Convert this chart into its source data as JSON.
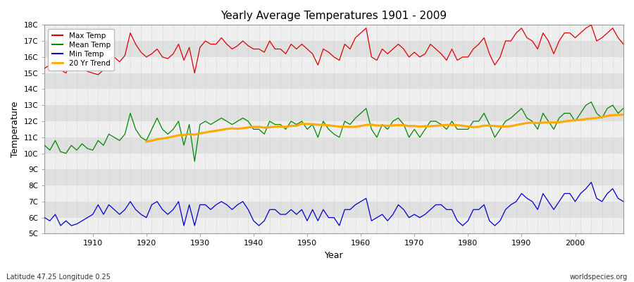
{
  "title": "Yearly Average Temperatures 1901 - 2009",
  "xlabel": "Year",
  "ylabel": "Temperature",
  "footnote_left": "Latitude 47.25 Longitude 0.25",
  "footnote_right": "worldspecies.org",
  "years": [
    1901,
    1902,
    1903,
    1904,
    1905,
    1906,
    1907,
    1908,
    1909,
    1910,
    1911,
    1912,
    1913,
    1914,
    1915,
    1916,
    1917,
    1918,
    1919,
    1920,
    1921,
    1922,
    1923,
    1924,
    1925,
    1926,
    1927,
    1928,
    1929,
    1930,
    1931,
    1932,
    1933,
    1934,
    1935,
    1936,
    1937,
    1938,
    1939,
    1940,
    1941,
    1942,
    1943,
    1944,
    1945,
    1946,
    1947,
    1948,
    1949,
    1950,
    1951,
    1952,
    1953,
    1954,
    1955,
    1956,
    1957,
    1958,
    1959,
    1960,
    1961,
    1962,
    1963,
    1964,
    1965,
    1966,
    1967,
    1968,
    1969,
    1970,
    1971,
    1972,
    1973,
    1974,
    1975,
    1976,
    1977,
    1978,
    1979,
    1980,
    1981,
    1982,
    1983,
    1984,
    1985,
    1986,
    1987,
    1988,
    1989,
    1990,
    1991,
    1992,
    1993,
    1994,
    1995,
    1996,
    1997,
    1998,
    1999,
    2000,
    2001,
    2002,
    2003,
    2004,
    2005,
    2006,
    2007,
    2008,
    2009
  ],
  "max_temp": [
    15.3,
    15.5,
    15.8,
    15.2,
    15.0,
    15.8,
    15.3,
    15.6,
    15.1,
    15.0,
    14.9,
    15.2,
    15.8,
    16.0,
    15.7,
    16.1,
    17.5,
    16.8,
    16.3,
    16.0,
    16.2,
    16.5,
    16.0,
    15.9,
    16.2,
    16.8,
    15.8,
    16.6,
    15.0,
    16.6,
    17.0,
    16.8,
    16.8,
    17.2,
    16.8,
    16.5,
    16.7,
    17.0,
    16.7,
    16.5,
    16.5,
    16.3,
    17.0,
    16.5,
    16.5,
    16.2,
    16.8,
    16.5,
    16.8,
    16.5,
    16.2,
    15.5,
    16.5,
    16.3,
    16.0,
    15.8,
    16.8,
    16.5,
    17.2,
    17.5,
    17.8,
    16.0,
    15.8,
    16.5,
    16.2,
    16.5,
    16.8,
    16.5,
    16.0,
    16.3,
    16.0,
    16.2,
    16.8,
    16.5,
    16.2,
    15.8,
    16.5,
    15.8,
    16.0,
    16.0,
    16.5,
    16.8,
    17.2,
    16.2,
    15.5,
    16.0,
    17.0,
    17.0,
    17.5,
    17.8,
    17.2,
    17.0,
    16.5,
    17.5,
    17.0,
    16.2,
    17.0,
    17.5,
    17.5,
    17.2,
    17.5,
    17.8,
    18.0,
    17.0,
    17.2,
    17.5,
    17.8,
    17.2,
    16.8
  ],
  "mean_temp": [
    10.5,
    10.2,
    10.8,
    10.1,
    10.0,
    10.5,
    10.2,
    10.6,
    10.3,
    10.2,
    10.8,
    10.5,
    11.2,
    11.0,
    10.8,
    11.2,
    12.5,
    11.5,
    11.0,
    10.8,
    11.5,
    12.2,
    11.5,
    11.2,
    11.5,
    12.0,
    10.5,
    11.8,
    9.5,
    11.8,
    12.0,
    11.8,
    12.0,
    12.2,
    12.0,
    11.8,
    12.0,
    12.2,
    12.0,
    11.5,
    11.5,
    11.2,
    12.0,
    11.8,
    11.8,
    11.5,
    12.0,
    11.8,
    12.0,
    11.5,
    11.8,
    11.0,
    12.0,
    11.5,
    11.2,
    11.0,
    12.0,
    11.8,
    12.2,
    12.5,
    12.8,
    11.5,
    11.0,
    11.8,
    11.5,
    12.0,
    12.2,
    11.8,
    11.0,
    11.5,
    11.0,
    11.5,
    12.0,
    12.0,
    11.8,
    11.5,
    12.0,
    11.5,
    11.5,
    11.5,
    12.0,
    12.0,
    12.5,
    11.8,
    11.0,
    11.5,
    12.0,
    12.2,
    12.5,
    12.8,
    12.2,
    12.0,
    11.5,
    12.5,
    12.0,
    11.5,
    12.2,
    12.5,
    12.5,
    12.0,
    12.5,
    13.0,
    13.2,
    12.5,
    12.2,
    12.8,
    13.0,
    12.5,
    12.8
  ],
  "min_temp": [
    6.0,
    5.8,
    6.2,
    5.5,
    5.8,
    5.5,
    5.6,
    5.8,
    6.0,
    6.2,
    6.8,
    6.2,
    6.8,
    6.5,
    6.2,
    6.5,
    7.0,
    6.5,
    6.2,
    6.0,
    6.8,
    7.0,
    6.5,
    6.2,
    6.5,
    7.0,
    5.5,
    6.8,
    5.5,
    6.8,
    6.8,
    6.5,
    6.8,
    7.0,
    6.8,
    6.5,
    6.8,
    7.0,
    6.5,
    5.8,
    5.5,
    5.8,
    6.5,
    6.5,
    6.2,
    6.2,
    6.5,
    6.2,
    6.5,
    5.8,
    6.5,
    5.8,
    6.5,
    6.0,
    6.0,
    5.5,
    6.5,
    6.5,
    6.8,
    7.0,
    7.2,
    5.8,
    6.0,
    6.2,
    5.8,
    6.2,
    6.8,
    6.5,
    6.0,
    6.2,
    6.0,
    6.2,
    6.5,
    6.8,
    6.8,
    6.5,
    6.5,
    5.8,
    5.5,
    5.8,
    6.5,
    6.5,
    6.8,
    5.8,
    5.5,
    5.8,
    6.5,
    6.8,
    7.0,
    7.5,
    7.2,
    7.0,
    6.5,
    7.5,
    7.0,
    6.5,
    7.0,
    7.5,
    7.5,
    7.0,
    7.5,
    7.8,
    8.2,
    7.2,
    7.0,
    7.5,
    7.8,
    7.2,
    7.0
  ],
  "fig_bg_color": "#ffffff",
  "plot_bg_color": "#e8e8e8",
  "band_color_light": "#efefef",
  "band_color_dark": "#e0e0e0",
  "grid_color": "#cccccc",
  "max_color": "#dd0000",
  "mean_color": "#008800",
  "min_color": "#0000cc",
  "trend_color": "#ffaa00",
  "ylim_min": 5,
  "ylim_max": 18,
  "yticks": [
    5,
    6,
    7,
    8,
    9,
    10,
    11,
    12,
    13,
    14,
    15,
    16,
    17,
    18
  ],
  "ytick_labels": [
    "5C",
    "6C",
    "7C",
    "8C",
    "9C",
    "10C",
    "11C",
    "12C",
    "13C",
    "14C",
    "15C",
    "16C",
    "17C",
    "18C"
  ],
  "xlim_min": 1901,
  "xlim_max": 2009
}
